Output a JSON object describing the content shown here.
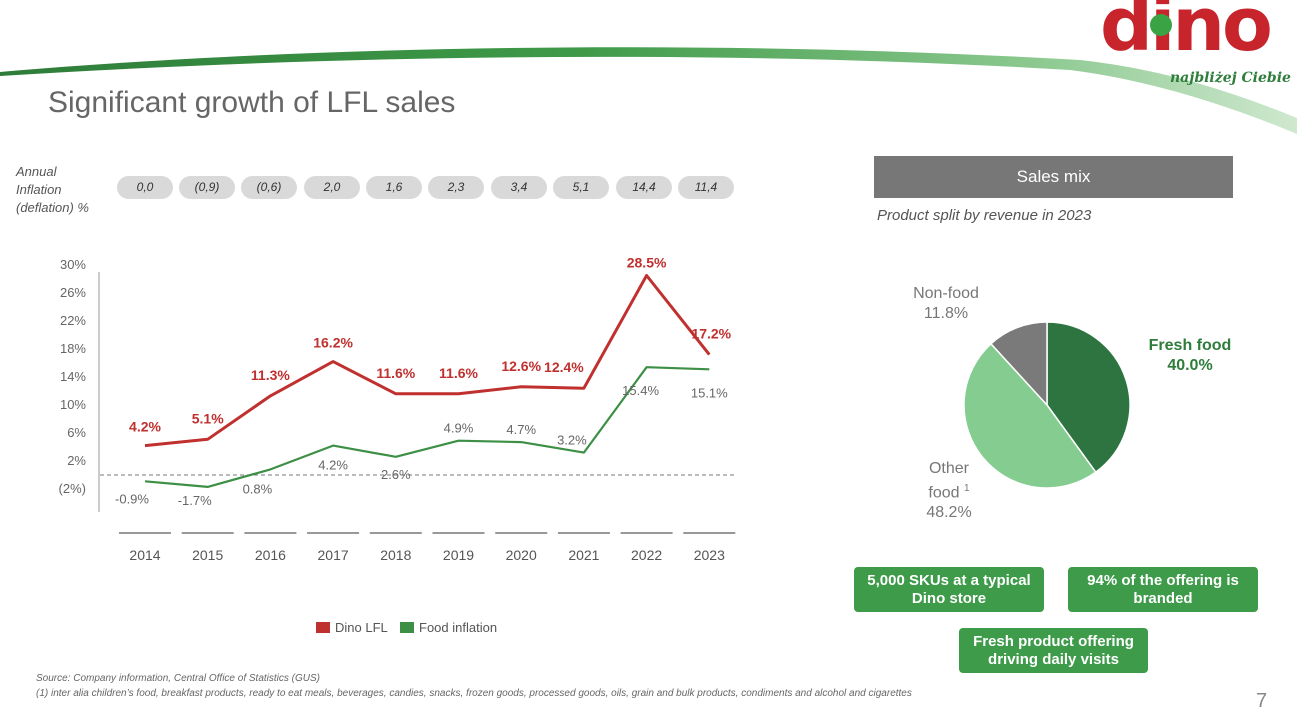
{
  "brand": {
    "logo_text": "dino",
    "tagline": "najbliżej Ciebie",
    "red": "#c8242c",
    "green": "#2e7d3a"
  },
  "title": "Significant growth of LFL sales",
  "inflation": {
    "label_lines": [
      "Annual",
      "Inflation",
      "(deflation) %"
    ],
    "values": [
      "0,0",
      "(0,9)",
      "(0,6)",
      "2,0",
      "1,6",
      "2,3",
      "3,4",
      "5,1",
      "14,4",
      "11,4"
    ]
  },
  "chart_data": [
    {
      "type": "line",
      "x": [
        "2014",
        "2015",
        "2016",
        "2017",
        "2018",
        "2019",
        "2020",
        "2021",
        "2022",
        "2023"
      ],
      "yticks": [
        "30%",
        "26%",
        "22%",
        "18%",
        "14%",
        "10%",
        "6%",
        "2%",
        "(2%)"
      ],
      "ylim": [
        -2,
        30
      ],
      "series": [
        {
          "name": "Dino LFL",
          "color": "#c0302e",
          "values": [
            4.2,
            5.1,
            11.3,
            16.2,
            11.6,
            11.6,
            12.6,
            12.4,
            28.5,
            17.2
          ],
          "labels": [
            "4.2%",
            "5.1%",
            "11.3%",
            "16.2%",
            "11.6%",
            "11.6%",
            "12.6%",
            "12.4%",
            "28.5%",
            "17.2%"
          ]
        },
        {
          "name": "Food inflation",
          "color": "#3c8f45",
          "values": [
            -0.9,
            -1.7,
            0.8,
            4.2,
            2.6,
            4.9,
            4.7,
            3.2,
            15.4,
            15.1
          ],
          "labels": [
            "-0.9%",
            "-1.7%",
            "0.8%",
            "4.2%",
            "2.6%",
            "4.9%",
            "4.7%",
            "3.2%",
            "15.4%",
            "15.1%"
          ]
        }
      ],
      "reference_line": 0,
      "grid": false
    },
    {
      "type": "pie",
      "title": "Sales mix",
      "subtitle": "Product split by revenue in 2023",
      "slices": [
        {
          "name": "Fresh food",
          "value": 40.0,
          "label": "40.0%",
          "color": "#2e7440"
        },
        {
          "name": "Other food",
          "value": 48.2,
          "label": "48.2%",
          "color": "#84cc8f"
        },
        {
          "name": "Non-food",
          "value": 11.8,
          "label": "11.8%",
          "color": "#7a7a7a"
        }
      ]
    }
  ],
  "labels": {
    "non_food": "Non-food",
    "other_food_1": "Other",
    "other_food_2": "food",
    "footnote_mark": "1",
    "fresh_food": "Fresh food"
  },
  "highlights": [
    "5,000 SKUs at a typical Dino store",
    "94%  of the offering is branded",
    "Fresh product offering driving daily visits"
  ],
  "source": "Source:   Company information, Central Office of Statistics (GUS)",
  "footnote": "(1)   inter alia children’s food, breakfast products, ready to eat meals, beverages, candies, snacks, frozen goods, processed goods, oils, grain and bulk products, condiments and alcohol and cigarettes",
  "page_number": "7"
}
